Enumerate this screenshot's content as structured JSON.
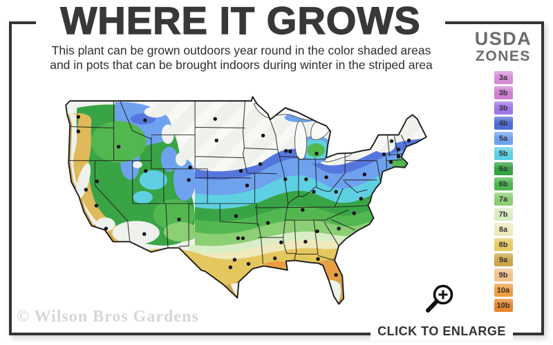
{
  "header": {
    "title": "WHERE IT GROWS",
    "subtitle_line1": "This plant can be grown outdoors year round in the color shaded areas",
    "subtitle_line2": "and in pots that can be brought indoors during winter in the striped area"
  },
  "legend": {
    "title_line1": "USDA",
    "title_line2": "ZONES",
    "zones": [
      {
        "label": "3a",
        "color": "#d98dd9"
      },
      {
        "label": "3b",
        "color": "#cf7ed2"
      },
      {
        "label": "3b",
        "color": "#9d77e8"
      },
      {
        "label": "4b",
        "color": "#4e6cd4"
      },
      {
        "label": "5a",
        "color": "#6fa2ee"
      },
      {
        "label": "5b",
        "color": "#5ed0e4"
      },
      {
        "label": "6a",
        "color": "#33a343"
      },
      {
        "label": "6b",
        "color": "#4fb551"
      },
      {
        "label": "7a",
        "color": "#8bce74"
      },
      {
        "label": "7b",
        "color": "#d9edc3"
      },
      {
        "label": "8a",
        "color": "#eee9bd"
      },
      {
        "label": "8b",
        "color": "#e7cb62"
      },
      {
        "label": "9a",
        "color": "#cda64b"
      },
      {
        "label": "9b",
        "color": "#f2c28b"
      },
      {
        "label": "10a",
        "color": "#ef9d44"
      },
      {
        "label": "10b",
        "color": "#e6852f"
      }
    ]
  },
  "map": {
    "watermark": "© Wilson Bros Gardens",
    "colors": {
      "no_grow": "#eff1ec",
      "stripe": "#ffffff",
      "blue_4b": "#5577dd",
      "blue_5a": "#6fa2ee",
      "cyan_5b": "#5fd0e2",
      "green_6a": "#39a446",
      "green_6b": "#53b750",
      "green_7a": "#8ccf74",
      "pale_7b": "#d9eec6",
      "cream_8a": "#efe9bb",
      "gold_8b": "#e5c75f",
      "gold_9a": "#cda64b",
      "orange_10": "#ee9c42",
      "tan_coast": "#dfb95a",
      "coast_dark": "#c79f45",
      "lake_fill": "#fafbf9",
      "outline": "#1c1c1c",
      "dot": "#111111"
    }
  },
  "footer": {
    "enlarge_label": "CLICK TO ENLARGE"
  },
  "frame": {
    "border_color": "#343434"
  }
}
